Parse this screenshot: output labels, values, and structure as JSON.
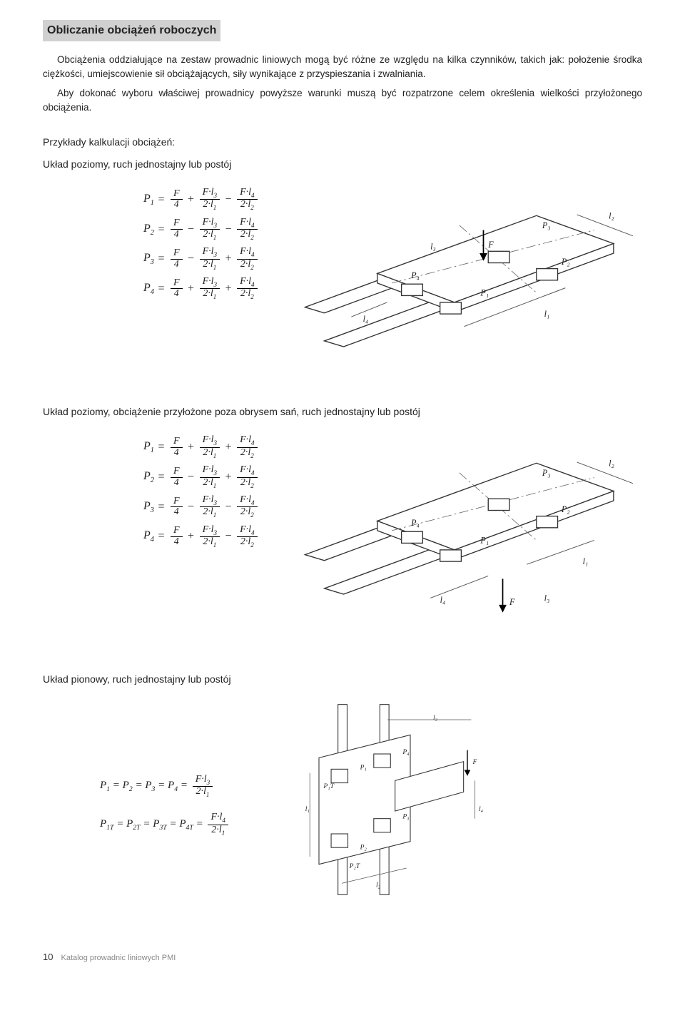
{
  "title": "Obliczanie obciążeń roboczych",
  "intro_p1": "Obciążenia oddziałujące na zestaw prowadnic liniowych mogą być różne ze względu na kilka czynników, takich jak: położenie środka ciężkości, umiejscowienie sił obciążających, siły wynikające z przyspieszania i zwalniania.",
  "intro_p2": "Aby dokonać wyboru właściwej prowadnicy powyższe warunki muszą być rozpatrzone celem określenia wielkości przyłożonego obciążenia.",
  "examples_heading": "Przykłady kalkulacji obciążeń:",
  "case1_heading": "Układ poziomy, ruch jednostajny lub postój",
  "case2_heading": "Układ poziomy, obciążenie przyłożone poza obrysem sań, ruch jednostajny lub postój",
  "case3_heading": "Układ pionowy, ruch jednostajny lub postój",
  "formula_parts": {
    "P1": "P",
    "s1": "1",
    "P2": "P",
    "s2": "2",
    "P3": "P",
    "s3": "3",
    "P4": "P",
    "s4": "4",
    "F": "F",
    "four": "4",
    "Fl3": "F·l",
    "n3": "3",
    "two_l1": "2·l",
    "d1": "1",
    "Fl4": "F·l",
    "n4": "4",
    "two_l2": "2·l",
    "d2": "2"
  },
  "signs": {
    "case1": [
      [
        "+",
        "−"
      ],
      [
        "−",
        "−"
      ],
      [
        "−",
        "+"
      ],
      [
        "+",
        "+"
      ]
    ],
    "case2": [
      [
        "+",
        "+"
      ],
      [
        "−",
        "+"
      ],
      [
        "−",
        "−"
      ],
      [
        "+",
        "−"
      ]
    ]
  },
  "vert": {
    "line1_lhs": "P₁ = P₂ = P₃ = P₄ =",
    "line2_lhs": "P₁T = P₂T = P₃T = P₄T ="
  },
  "diagram_labels": {
    "P1": "P₁",
    "P2": "P₂",
    "P3": "P₃",
    "P4": "P₄",
    "P1T": "P₁T",
    "P2T": "P₂T",
    "F": "F",
    "l1": "l₁",
    "l2": "l₂",
    "l3": "l₃",
    "l4": "l₄"
  },
  "footer": {
    "page": "10",
    "text": "Katalog prowadnic liniowych PMI"
  }
}
